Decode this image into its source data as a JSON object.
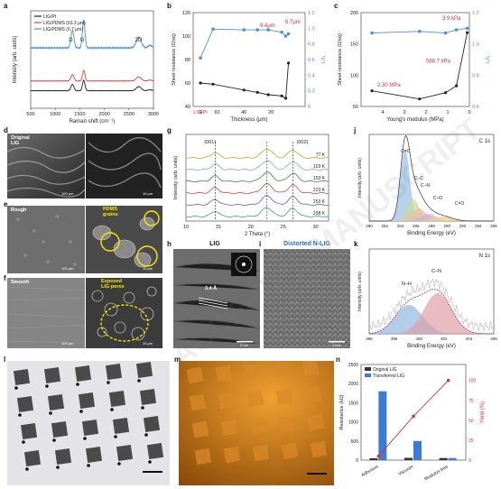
{
  "panels": {
    "a": "a",
    "b": "b",
    "c": "c",
    "d": "d",
    "e": "e",
    "f": "f",
    "g": "g",
    "h": "h",
    "i": "i",
    "j": "j",
    "k": "k",
    "l": "l",
    "m": "m",
    "n": "n"
  },
  "chart_data": [
    {
      "panel": "a",
      "type": "line",
      "xlabel": "Raman shift (cm⁻¹)",
      "ylabel": "Intensity (arb. units)",
      "xlim": [
        500,
        3000
      ],
      "xticks": [
        500,
        1000,
        1500,
        2000,
        2500,
        3000
      ],
      "legend": [
        "LIG/PI",
        "LIG/PDMS (63.3 μm)",
        "LIG/PDMS (6.7 μm)"
      ],
      "legend_position": "top-left",
      "series_colors": [
        "#222222",
        "#e0413b",
        "#4a90d9"
      ],
      "peak_labels": [
        "D",
        "G",
        "2D"
      ],
      "peak_positions": [
        1350,
        1580,
        2700
      ]
    },
    {
      "panel": "b",
      "type": "line",
      "xlabel": "Thickness (μm)",
      "ylabel": "Sheet resistance (Ω/sq)",
      "ylabel_right": "I₀/I₁",
      "x_categories": [
        "LIG/PI",
        "60",
        "40",
        "20",
        "0"
      ],
      "ylim": [
        40,
        120
      ],
      "yticks": [
        40,
        60,
        80,
        100,
        120
      ],
      "ylim_right": [
        0,
        1.2
      ],
      "yticks_right": [
        "0",
        "0.2",
        "0.4",
        "0.6",
        "0.8",
        "1.0",
        "1.2"
      ],
      "series": [
        {
          "color": "#222222",
          "x": [
            0,
            63,
            40,
            30,
            22,
            12,
            9,
            7
          ],
          "values": [
            60,
            59,
            54,
            52,
            50,
            49,
            47,
            77
          ]
        },
        {
          "color": "#4a90d9",
          "x": [
            0,
            63,
            40,
            30,
            22,
            12,
            9,
            7
          ],
          "values": [
            0.62,
            0.99,
            0.98,
            0.98,
            0.98,
            0.95,
            0.9,
            0.93
          ]
        }
      ],
      "annotations": [
        "9.4μm",
        "6.7μm"
      ]
    },
    {
      "panel": "c",
      "type": "line",
      "xlabel": "Young's modulus (MPa)",
      "ylabel": "Sheet resistance (Ω/sq)",
      "ylabel_right": "I₀/I₁",
      "xlim": [
        5,
        0
      ],
      "xticks": [
        4,
        3,
        2,
        1,
        0
      ],
      "ylim": [
        50,
        200
      ],
      "yticks": [
        50,
        100,
        150,
        200
      ],
      "ylim_right": [
        0.6,
        1.2
      ],
      "yticks_right": [
        "0.6",
        "0.8",
        "1.0",
        "1.2"
      ],
      "series": [
        {
          "color": "#222222",
          "x": [
            4.5,
            2.3,
            1.1,
            0.6,
            0.1
          ],
          "values": [
            75,
            62,
            72,
            83,
            168
          ]
        },
        {
          "color": "#4a90d9",
          "x": [
            4.5,
            2.3,
            1.1,
            0.6,
            0.1
          ],
          "values": [
            1.07,
            1.08,
            1.07,
            1.09,
            1.1
          ]
        }
      ],
      "annotations": [
        "3.9 kPa",
        "588.7 kPa",
        "2.30 MPa"
      ]
    },
    {
      "panel": "g",
      "type": "line",
      "xlabel": "2 Theta (°)",
      "ylabel": "Intensity (arb. units)",
      "xlim": [
        10,
        32
      ],
      "xticks": [
        10,
        15,
        20,
        25,
        30
      ],
      "peaks": [
        "(001)",
        "(002)"
      ],
      "temperatures": [
        "77 K",
        "103 K",
        "153 K",
        "223 K",
        "253 K",
        "298 K"
      ],
      "series_colors": [
        "#d4a020",
        "#7aa8d8",
        "#3a8a3a",
        "#e04040",
        "#6060c0",
        "#30a0a0"
      ]
    },
    {
      "panel": "j",
      "type": "area",
      "title": "C 1s",
      "xlabel": "Binding Energy (eV)",
      "ylabel": "Intensity (arb. units)",
      "xlim": [
        280,
        296
      ],
      "xticks": [
        280,
        282,
        284,
        286,
        288,
        290,
        292,
        294,
        296
      ],
      "components": [
        "C=C",
        "C–C",
        "C–N",
        "C–O",
        "C=O"
      ]
    },
    {
      "panel": "k",
      "type": "area",
      "title": "N 1s",
      "xlabel": "Binding Energy (eV)",
      "ylabel": "Intensity (arb. units)",
      "xlim": [
        396,
        406
      ],
      "xticks": [
        396,
        398,
        400,
        402,
        404,
        406
      ],
      "components": [
        "N–H",
        "C–N"
      ]
    },
    {
      "panel": "n",
      "type": "bar",
      "categories": [
        "Adhesion",
        "Vacuum",
        "Modulus-free"
      ],
      "ylabel": "Resistance (kΩ)",
      "ylabel_right": "Yield (%)",
      "ylim": [
        0,
        2500
      ],
      "yticks": [
        0,
        500,
        1000,
        1500,
        2000,
        2500
      ],
      "ylim_right": [
        0,
        120
      ],
      "yticks_right": [
        0,
        25,
        50,
        75,
        100
      ],
      "series": [
        {
          "name": "Original LIG",
          "color": "#333333",
          "values": [
            50,
            60,
            55
          ]
        },
        {
          "name": "Transferred LIG",
          "color": "#3a7bd5",
          "values": [
            1800,
            500,
            55
          ]
        }
      ],
      "yield_series": {
        "color": "#e03030",
        "values": [
          5,
          55,
          100
        ]
      },
      "legend_position": "top-left"
    }
  ],
  "micrographs": {
    "d": {
      "label": "Original\nLIG",
      "scale_left": "100 μm",
      "scale_right": "10 μm"
    },
    "e": {
      "label": "Rough",
      "annot": "PDMS\ngrains",
      "scale_left": "100 μm",
      "scale_right": "10 μm"
    },
    "f": {
      "label": "Smooth",
      "annot": "Exposed\nLIG pores",
      "scale_left": "100 μm",
      "scale_right": "10 μm"
    },
    "h": {
      "title": "LIG",
      "spacing": "3.4 Å",
      "scale": "2 nm"
    },
    "i": {
      "title": "Distorted N-LIG",
      "scale": "2 nm"
    }
  },
  "watermark": "ACCEPTED MANUSCRIPT"
}
